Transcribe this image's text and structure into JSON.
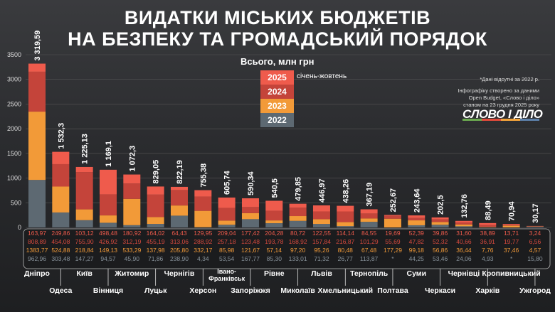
{
  "header": {
    "title_line1": "ВИДАТКИ МІСЬКИХ БЮДЖЕТІВ",
    "title_line2": "НА БЕЗПЕКУ ТА ГРОМАДСЬКИЙ ПОРЯДОК"
  },
  "legend": {
    "title": "Всього, млн грн",
    "period_note": "січень-жовтень",
    "items": [
      {
        "label": "2025",
        "color": "#ef5b4c"
      },
      {
        "label": "2024",
        "color": "#c4443a"
      },
      {
        "label": "2023",
        "color": "#f29a38"
      },
      {
        "label": "2022",
        "color": "#5d6972"
      }
    ]
  },
  "notes": {
    "missing": "*Дані відсутні за 2022 р.",
    "source_line1": "Інфографіку створено за даними",
    "source_line2": "Open Budget, «Слово і діло»",
    "source_line3": "станом на 23 грудня 2025 року",
    "logo": "СЛОВО І ДІЛО",
    "missing_marker": "*"
  },
  "chart_data": {
    "type": "bar",
    "stacked": true,
    "title": "ВИДАТКИ МІСЬКИХ БЮДЖЕТІВ НА БЕЗПЕКУ ТА ГРОМАДСЬКИЙ ПОРЯДОК",
    "ylabel": "",
    "ylim": [
      0,
      3500
    ],
    "yticks": [
      "0",
      "500",
      "1000",
      "1500",
      "2000",
      "2500",
      "3000",
      "3500"
    ],
    "grid": true,
    "categories": [
      "Дніпро",
      "Одеса",
      "Київ",
      "Вінниця",
      "Житомир",
      "Луцьк",
      "Чернігів",
      "Херсон",
      "Івано-Франківськ",
      "Запоріжжя",
      "Рівне",
      "Миколаїв",
      "Львів",
      "Хмельницький",
      "Тернопіль",
      "Полтава",
      "Суми",
      "Черкаси",
      "Чернівці",
      "Харків",
      "Кропивницький",
      "Ужгород"
    ],
    "totals": [
      "3 319,59",
      "1 532,3",
      "1 225,13",
      "1 169,1",
      "1 072,3",
      "829,05",
      "822,19",
      "755,38",
      "605,74",
      "590,34",
      "540,5",
      "479,85",
      "446,97",
      "438,26",
      "367,19",
      "252,67",
      "243,64",
      "202,5",
      "132,76",
      "88,49",
      "70,94",
      "30,17"
    ],
    "series": [
      {
        "name": "2025",
        "values": [
          163.97,
          249.86,
          103.12,
          498.48,
          180.92,
          164.02,
          64.43,
          129.95,
          209.04,
          177.42,
          204.28,
          80.72,
          122.55,
          114.14,
          84.55,
          19.69,
          52.39,
          39.86,
          31.6,
          38.89,
          13.71,
          3.24
        ],
        "labels": [
          "163,97",
          "249,86",
          "103,12",
          "498,48",
          "180,92",
          "164,02",
          "64,43",
          "129,95",
          "209,04",
          "177,42",
          "204,28",
          "80,72",
          "122,55",
          "114,14",
          "84,55",
          "19,69",
          "52,39",
          "39,86",
          "31,60",
          "38,89",
          "13,71",
          "3,24"
        ]
      },
      {
        "name": "2024",
        "values": [
          808.89,
          454.08,
          755.9,
          426.92,
          312.19,
          455.19,
          313.06,
          288.92,
          257.18,
          123.48,
          193.78,
          168.92,
          157.84,
          216.87,
          101.29,
          55.69,
          47.82,
          52.32,
          40.66,
          36.91,
          19.77,
          6.56
        ],
        "labels": [
          "808,89",
          "454,08",
          "755,90",
          "426,92",
          "312,19",
          "455,19",
          "313,06",
          "288,92",
          "257,18",
          "123,48",
          "193,78",
          "168,92",
          "157,84",
          "216,87",
          "101,29",
          "55,69",
          "47,82",
          "52,32",
          "40,66",
          "36,91",
          "19,77",
          "6,56"
        ]
      },
      {
        "name": "2023",
        "values": [
          1383.77,
          524.88,
          218.84,
          149.13,
          533.29,
          137.98,
          205.8,
          332.17,
          85.98,
          121.67,
          57.14,
          97.2,
          95.26,
          80.48,
          67.48,
          177.29,
          99.18,
          56.86,
          36.44,
          7.76,
          37.46,
          4.57
        ],
        "labels": [
          "1383,77",
          "524,88",
          "218,84",
          "149,13",
          "533,29",
          "137,98",
          "205,80",
          "332,17",
          "85,98",
          "121,67",
          "57,14",
          "97,20",
          "95,26",
          "80,48",
          "67,48",
          "177,29",
          "99,18",
          "56,86",
          "36,44",
          "7,76",
          "37,46",
          "4,57"
        ]
      },
      {
        "name": "2022",
        "values": [
          962.96,
          303.48,
          147.27,
          94.57,
          45.9,
          71.86,
          238.9,
          4.34,
          53.54,
          167.77,
          85.3,
          133.01,
          71.32,
          26.77,
          113.87,
          null,
          44.25,
          53.46,
          24.06,
          4.93,
          null,
          15.8
        ],
        "labels": [
          "962,96",
          "303,48",
          "147,27",
          "94,57",
          "45,90",
          "71,86",
          "238,90",
          "4,34",
          "53,54",
          "167,77",
          "85,30",
          "133,01",
          "71,32",
          "26,77",
          "113,87",
          "*",
          "44,25",
          "53,46",
          "24,06",
          "4,93",
          "*",
          "15,80"
        ]
      }
    ]
  }
}
